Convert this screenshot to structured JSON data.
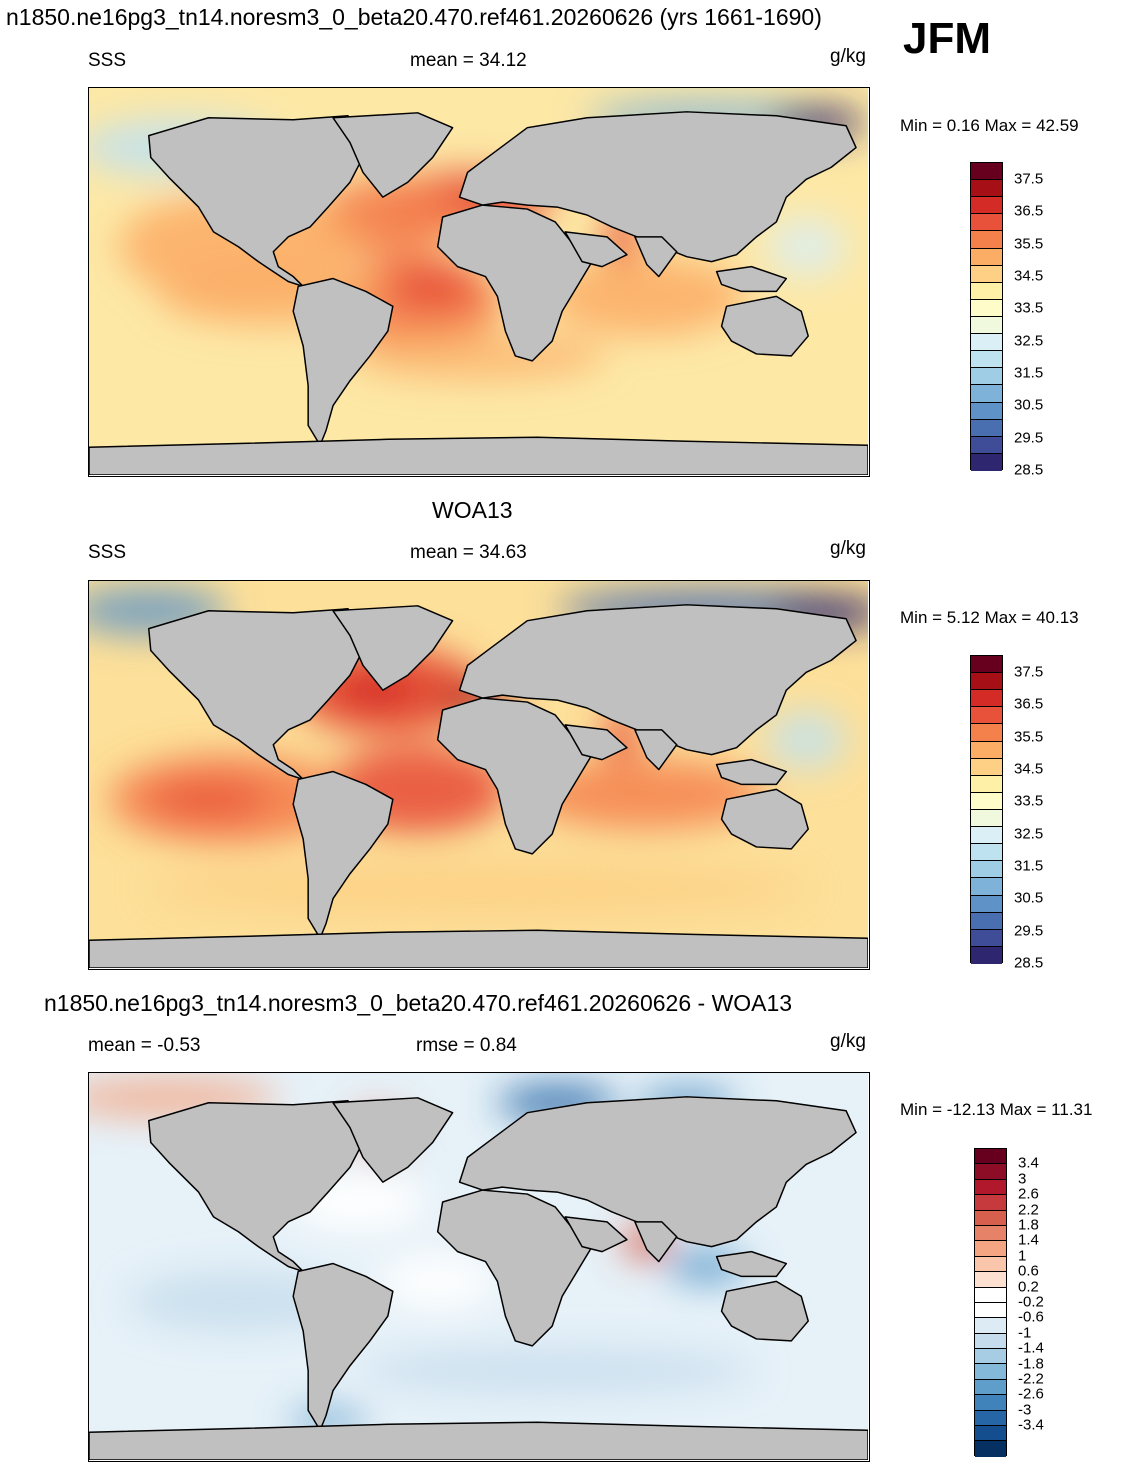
{
  "header": {
    "title": "n1850.ne16pg3_tn14.noresm3_0_beta20.470.ref461.20260626 (yrs 1661-1690)",
    "season": "JFM"
  },
  "panels": [
    {
      "subtitle": "",
      "left_label": "SSS",
      "center_label": "mean =  34.12",
      "units": "g/kg",
      "minmax": "Min =   0.16 Max =  42.59",
      "colorbar": {
        "labels": [
          "37.5",
          "36.5",
          "35.5",
          "34.5",
          "33.5",
          "32.5",
          "31.5",
          "30.5",
          "29.5",
          "28.5"
        ],
        "colors": [
          "#67001f",
          "#a50f15",
          "#d42b27",
          "#e8523a",
          "#f4804c",
          "#fbac65",
          "#fdd085",
          "#fff0a8",
          "#fefcc8",
          "#f0f9de",
          "#daeff6",
          "#bfe2f1",
          "#a0cde6",
          "#7eb2d9",
          "#5f93c7",
          "#4a6fb0",
          "#3f4d98",
          "#2e2770"
        ]
      },
      "map_scheme": "salinity_model"
    },
    {
      "subtitle": "WOA13",
      "left_label": "SSS",
      "center_label": "mean =  34.63",
      "units": "g/kg",
      "minmax": "Min =   5.12 Max =  40.13",
      "colorbar": {
        "labels": [
          "37.5",
          "36.5",
          "35.5",
          "34.5",
          "33.5",
          "32.5",
          "31.5",
          "30.5",
          "29.5",
          "28.5"
        ],
        "colors": [
          "#67001f",
          "#a50f15",
          "#d42b27",
          "#e8523a",
          "#f4804c",
          "#fbac65",
          "#fdd085",
          "#fff0a8",
          "#fefcc8",
          "#f0f9de",
          "#daeff6",
          "#bfe2f1",
          "#a0cde6",
          "#7eb2d9",
          "#5f93c7",
          "#4a6fb0",
          "#3f4d98",
          "#2e2770"
        ]
      },
      "map_scheme": "salinity_obs"
    },
    {
      "subtitle": "n1850.ne16pg3_tn14.noresm3_0_beta20.470.ref461.20260626 - WOA13",
      "left_label": "mean =  -0.53",
      "center_label": "rmse =   0.84",
      "units": "g/kg",
      "minmax": "Min = -12.13 Max =  11.31",
      "colorbar": {
        "labels": [
          "3.4",
          "3",
          "2.6",
          "2.2",
          "1.8",
          "1.4",
          "1",
          "0.6",
          "0.2",
          "-0.2",
          "-0.6",
          "-1",
          "-1.4",
          "-1.8",
          "-2.2",
          "-2.6",
          "-3",
          "-3.4"
        ],
        "colors": [
          "#67001f",
          "#8c0d25",
          "#b2182b",
          "#c63a3d",
          "#d6604d",
          "#e58268",
          "#f4a582",
          "#f9c6ab",
          "#fde0d0",
          "#ffffff",
          "#ffffff",
          "#dcebf4",
          "#c4dcec",
          "#a6cde3",
          "#84b9d9",
          "#5f9ecb",
          "#3f83ba",
          "#2666a6",
          "#154e8e",
          "#053061"
        ]
      },
      "map_scheme": "difference"
    }
  ]
}
